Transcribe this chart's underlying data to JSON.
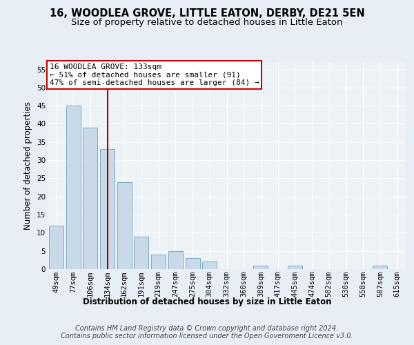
{
  "title1": "16, WOODLEA GROVE, LITTLE EATON, DERBY, DE21 5EN",
  "title2": "Size of property relative to detached houses in Little Eaton",
  "xlabel": "Distribution of detached houses by size in Little Eaton",
  "ylabel": "Number of detached properties",
  "categories": [
    "49sqm",
    "77sqm",
    "106sqm",
    "134sqm",
    "162sqm",
    "191sqm",
    "219sqm",
    "247sqm",
    "275sqm",
    "304sqm",
    "332sqm",
    "360sqm",
    "389sqm",
    "417sqm",
    "445sqm",
    "474sqm",
    "502sqm",
    "530sqm",
    "558sqm",
    "587sqm",
    "615sqm"
  ],
  "values": [
    12,
    45,
    39,
    33,
    24,
    9,
    4,
    5,
    3,
    2,
    0,
    0,
    1,
    0,
    1,
    0,
    0,
    0,
    0,
    1,
    0
  ],
  "bar_color": "#c9d9e8",
  "bar_edge_color": "#7aaac8",
  "vline_x": 3,
  "vline_color": "#aa0000",
  "annotation_box_text": "16 WOODLEA GROVE: 133sqm\n← 51% of detached houses are smaller (91)\n47% of semi-detached houses are larger (84) →",
  "annotation_box_color": "#cc0000",
  "ylim": [
    0,
    57
  ],
  "yticks": [
    0,
    5,
    10,
    15,
    20,
    25,
    30,
    35,
    40,
    45,
    50,
    55
  ],
  "footer_text": "Contains HM Land Registry data © Crown copyright and database right 2024.\nContains public sector information licensed under the Open Government Licence v3.0.",
  "bg_color": "#e8eef5",
  "plot_bg_color": "#edf2f7",
  "grid_color": "#ffffff",
  "title_fontsize": 10.5,
  "subtitle_fontsize": 9.5,
  "axis_label_fontsize": 8.5,
  "tick_fontsize": 7.5,
  "footer_fontsize": 7,
  "ann_fontsize": 8
}
